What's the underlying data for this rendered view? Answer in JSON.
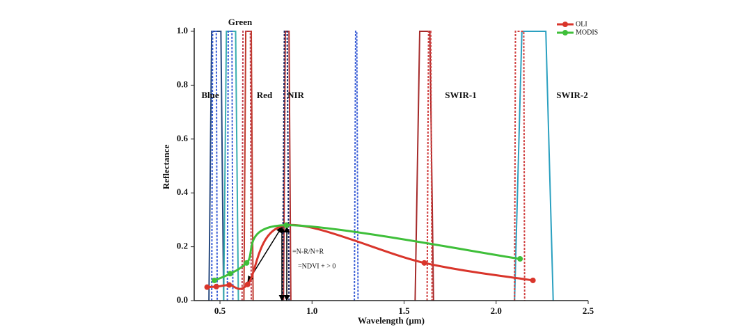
{
  "chart_data": {
    "type": "line",
    "x_label": "Wavelength (µm)",
    "y_label": "Reflectance",
    "xlim": [
      0.36,
      2.5
    ],
    "ylim": [
      0,
      1.0
    ],
    "xticks": [
      0.5,
      {
        "value": 1.0,
        "label": "1.0"
      },
      1.5,
      {
        "value": 2.0,
        "label": "2.0"
      },
      2.5
    ],
    "yticks": [
      {
        "value": 0,
        "label": "0.0"
      },
      0.2,
      0.4,
      0.6,
      0.8,
      {
        "value": 1.0,
        "label": "1.0"
      }
    ],
    "series": [
      {
        "name": "OLI",
        "color": "#d9352b",
        "x": [
          0.43,
          0.48,
          0.55,
          0.65,
          0.86,
          1.61,
          2.2
        ],
        "values": [
          0.05,
          0.052,
          0.058,
          0.06,
          0.28,
          0.14,
          0.075
        ]
      },
      {
        "name": "MODIS",
        "color": "#3fbf3a",
        "x": [
          0.47,
          0.555,
          0.645,
          0.86,
          2.13
        ],
        "values": [
          0.075,
          0.1,
          0.14,
          0.28,
          0.155
        ]
      }
    ],
    "response_curves": [
      {
        "color": "#27497f",
        "dash": false,
        "x": [
          0.44,
          0.455,
          0.505,
          0.52
        ],
        "values": [
          0,
          1.0,
          1.0,
          0
        ]
      },
      {
        "color": "#3b5fd6",
        "dash": true,
        "x": [
          0.455,
          0.46,
          0.48,
          0.485
        ],
        "values": [
          0,
          1.0,
          1.0,
          0
        ]
      },
      {
        "color": "#3aaeb0",
        "dash": false,
        "x": [
          0.52,
          0.535,
          0.585,
          0.6
        ],
        "values": [
          0,
          1.0,
          1.0,
          0
        ]
      },
      {
        "color": "#3b5fd6",
        "dash": true,
        "x": [
          0.54,
          0.545,
          0.565,
          0.57
        ],
        "values": [
          0,
          1.0,
          1.0,
          0
        ]
      },
      {
        "color": "#c0392b",
        "dash": false,
        "x": [
          0.63,
          0.64,
          0.67,
          0.68
        ],
        "values": [
          0,
          1.0,
          1.0,
          0
        ]
      },
      {
        "color": "#c04050",
        "dash": true,
        "x": [
          0.62,
          0.625,
          0.665,
          0.67
        ],
        "values": [
          0,
          1.0,
          1.0,
          0
        ]
      },
      {
        "color": "#b03030",
        "dash": false,
        "x": [
          0.845,
          0.855,
          0.875,
          0.885
        ],
        "values": [
          0,
          1.0,
          1.0,
          0
        ]
      },
      {
        "color": "#1a2a6a",
        "dash": true,
        "x": [
          0.84,
          0.85,
          0.865,
          0.875
        ],
        "values": [
          0,
          1.0,
          1.0,
          0
        ]
      },
      {
        "color": "#3b5fd6",
        "dash": true,
        "x": [
          1.23,
          1.237,
          1.243,
          1.25
        ],
        "values": [
          0,
          1.0,
          1.0,
          0
        ]
      },
      {
        "color": "#a52a2a",
        "dash": false,
        "x": [
          1.56,
          1.585,
          1.64,
          1.66
        ],
        "values": [
          0,
          1.0,
          1.0,
          0
        ]
      },
      {
        "color": "#d04040",
        "dash": true,
        "x": [
          1.625,
          1.633,
          1.645,
          1.652
        ],
        "values": [
          0,
          1.0,
          1.0,
          0
        ]
      },
      {
        "color": "#2aa0c0",
        "dash": false,
        "x": [
          2.1,
          2.14,
          2.27,
          2.31
        ],
        "values": [
          0,
          1.0,
          1.0,
          0
        ]
      },
      {
        "color": "#d04040",
        "dash": true,
        "x": [
          2.1,
          2.105,
          2.15,
          2.155
        ],
        "values": [
          0,
          1.0,
          1.0,
          0
        ]
      }
    ],
    "band_labels": [
      "Blue",
      "Green",
      "Red",
      "NIR",
      "SWIR-1",
      "SWIR-2"
    ],
    "annotations": [
      "=N-R/N+R",
      "=NDVI + > 0"
    ],
    "legend": "top-right"
  }
}
